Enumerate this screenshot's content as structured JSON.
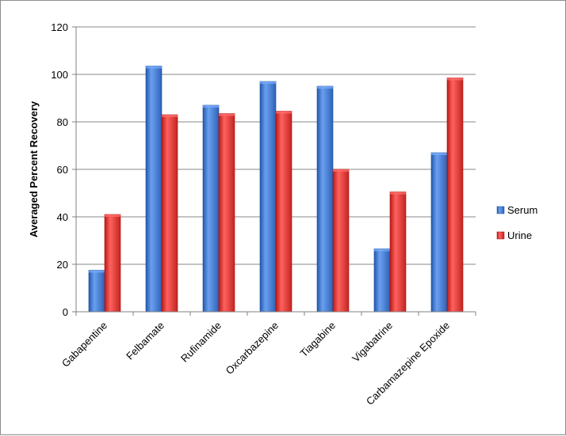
{
  "chart_data": {
    "type": "bar",
    "ylabel": "Averaged Percent Recovery",
    "xlabel": "",
    "ylim": [
      0,
      120
    ],
    "yticks": [
      0,
      20,
      40,
      60,
      80,
      100,
      120
    ],
    "grid": "horizontal",
    "legend_position": "right",
    "categories": [
      "Gabapentine",
      "Felbamate",
      "Rufinamide",
      "Oxcarbazepine",
      "Tiagabine",
      "Vigabatrine",
      "Carbamazepine Epoxide"
    ],
    "series": [
      {
        "name": "Serum",
        "color": "#3d72c4",
        "values": [
          17.5,
          103.5,
          87,
          97,
          95,
          26.5,
          67
        ]
      },
      {
        "name": "Urine",
        "color": "#d23431",
        "values": [
          41,
          83,
          83.5,
          84.5,
          60,
          50.5,
          98.5
        ]
      }
    ]
  }
}
